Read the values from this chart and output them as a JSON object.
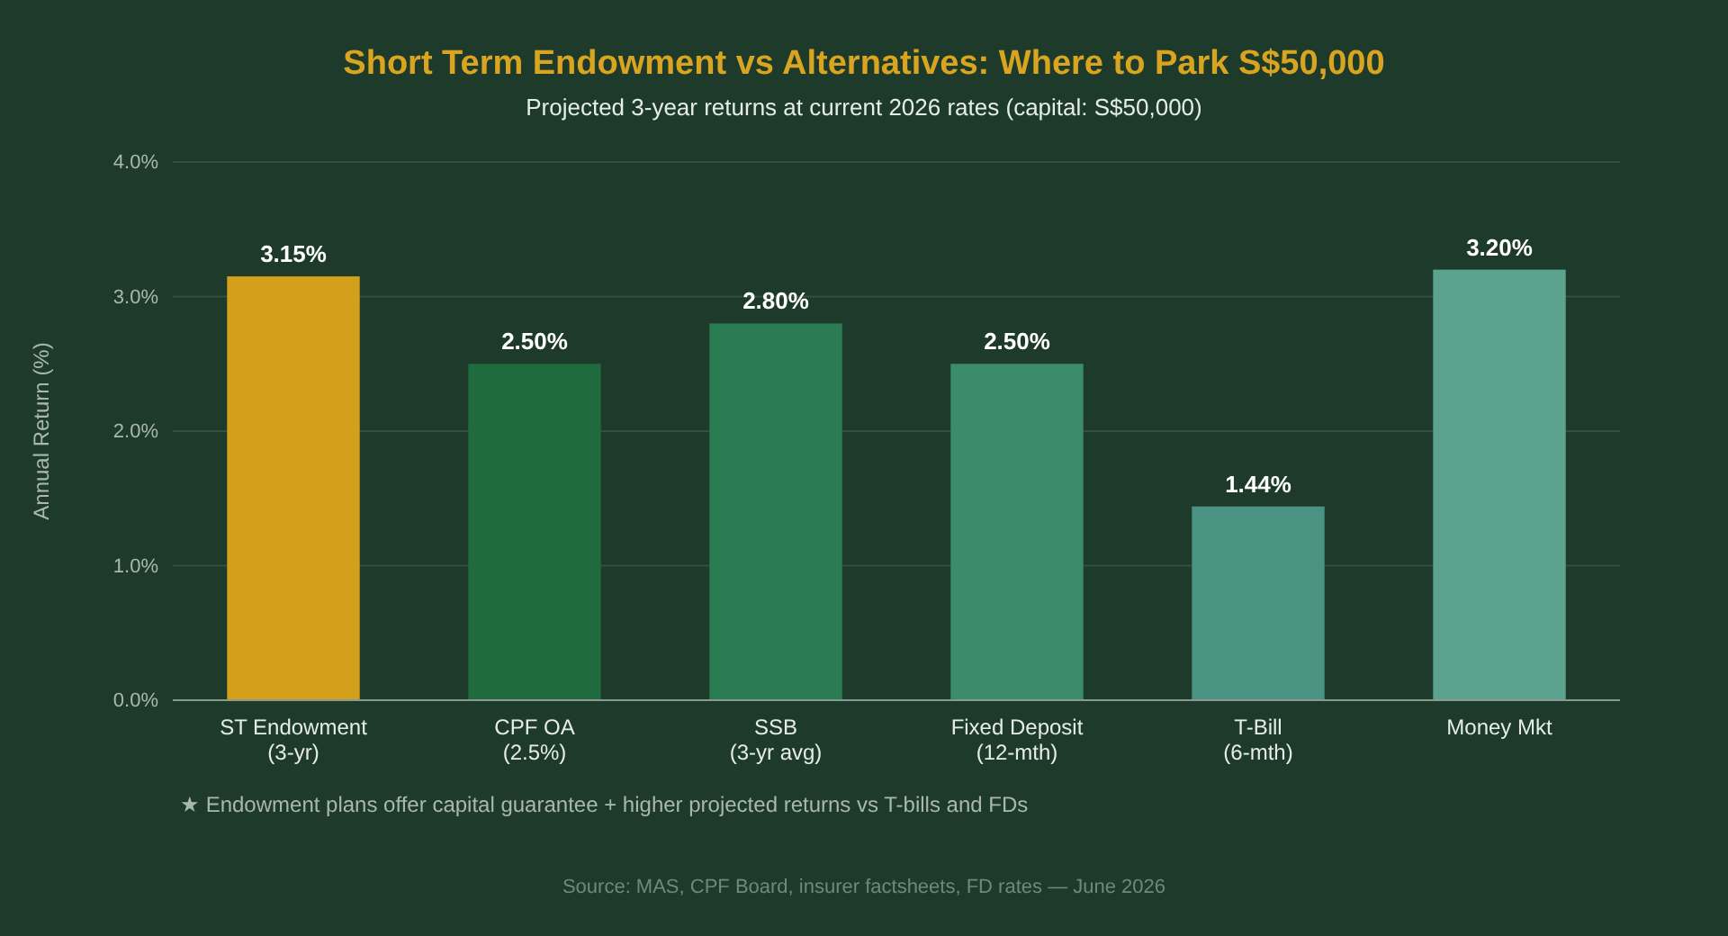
{
  "chart_data": {
    "type": "bar",
    "title": "Short Term Endowment vs Alternatives: Where to Park S$50,000",
    "subtitle": "Projected 3-year returns at current 2026 rates (capital: S$50,000)",
    "ylabel": "Annual Return (%)",
    "categories": [
      "ST Endowment\n(3-yr)",
      "CPF OA\n(2.5%)",
      "SSB\n(3-yr avg)",
      "Fixed Deposit\n(12-mth)",
      "T-Bill\n(6-mth)",
      "Money Mkt"
    ],
    "values": [
      3.15,
      2.5,
      2.8,
      2.5,
      1.44,
      3.2
    ],
    "value_labels": [
      "3.15%",
      "2.50%",
      "2.80%",
      "2.50%",
      "1.44%",
      "3.20%"
    ],
    "colors": [
      "#d4a01c",
      "#1f6b3f",
      "#2a7c52",
      "#3b8c68",
      "#4a9282",
      "#5ba38f"
    ],
    "ylim": [
      0,
      4
    ],
    "yticks": [
      {
        "value": 0,
        "label": "0.0%"
      },
      {
        "value": 1,
        "label": "1.0%"
      },
      {
        "value": 2,
        "label": "2.0%"
      },
      {
        "value": 3,
        "label": "3.0%"
      },
      {
        "value": 4,
        "label": "4.0%"
      }
    ],
    "grid": "y",
    "annotations": [
      "★ Endowment plans offer capital guarantee + higher projected returns vs T-bills and FDs",
      "Source: MAS, CPF Board, insurer factsheets, FD rates — June 2026"
    ]
  }
}
